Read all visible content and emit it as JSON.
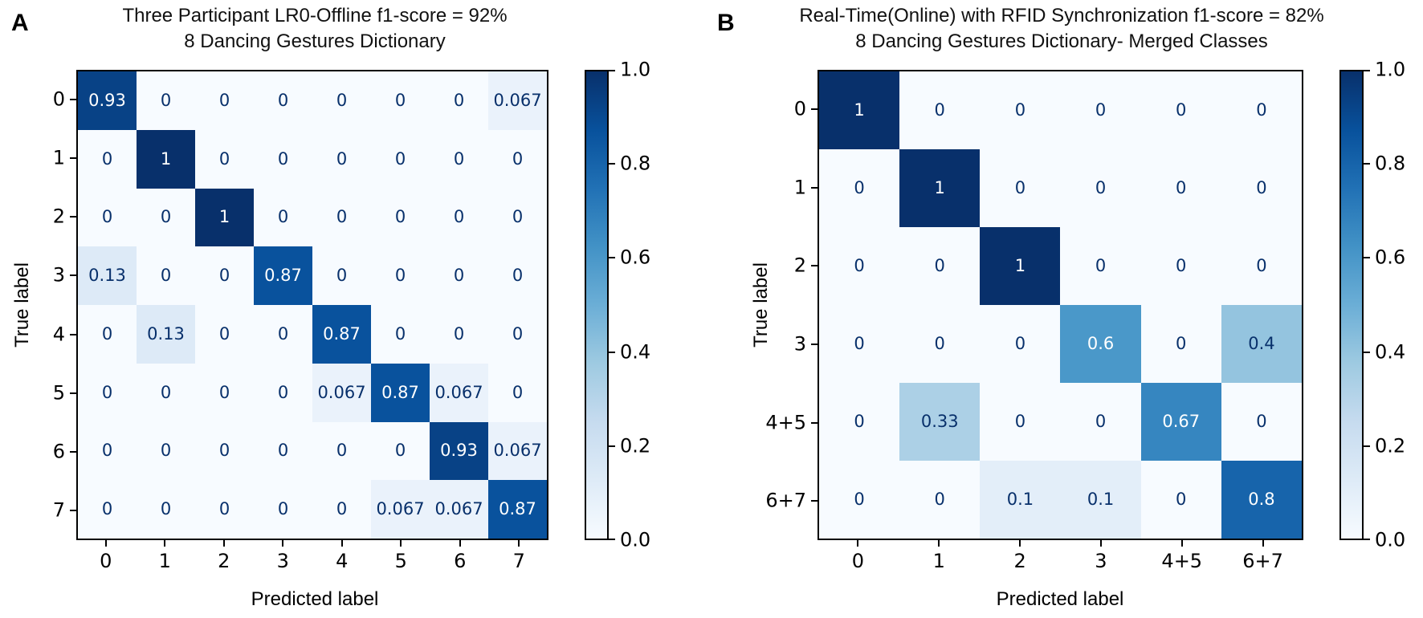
{
  "chart_data": [
    {
      "type": "heatmap",
      "panel_label": "A",
      "title": "Three Participant LR0-Offline f1-score = 92%",
      "subtitle": "8 Dancing Gestures Dictionary",
      "xlabel": "Predicted label",
      "ylabel": "True label",
      "x_categories": [
        "0",
        "1",
        "2",
        "3",
        "4",
        "5",
        "6",
        "7"
      ],
      "y_categories": [
        "0",
        "1",
        "2",
        "3",
        "4",
        "5",
        "6",
        "7"
      ],
      "matrix": [
        [
          0.93,
          0,
          0,
          0,
          0,
          0,
          0,
          0.067
        ],
        [
          0,
          1,
          0,
          0,
          0,
          0,
          0,
          0
        ],
        [
          0,
          0,
          1,
          0,
          0,
          0,
          0,
          0
        ],
        [
          0.13,
          0,
          0,
          0.87,
          0,
          0,
          0,
          0
        ],
        [
          0,
          0.13,
          0,
          0,
          0.87,
          0,
          0,
          0
        ],
        [
          0,
          0,
          0,
          0,
          0.067,
          0.87,
          0.067,
          0
        ],
        [
          0,
          0,
          0,
          0,
          0,
          0,
          0.93,
          0.067
        ],
        [
          0,
          0,
          0,
          0,
          0,
          0.067,
          0.067,
          0.87
        ]
      ],
      "colorbar": {
        "min": 0.0,
        "max": 1.0,
        "tick_labels": [
          "1.0",
          "0.8",
          "0.6",
          "0.4",
          "0.2",
          "0.0"
        ],
        "colormap": "Blues"
      }
    },
    {
      "type": "heatmap",
      "panel_label": "B",
      "title": "Real-Time(Online) with RFID Synchronization f1-score = 82%",
      "subtitle": "8 Dancing Gestures Dictionary- Merged Classes",
      "xlabel": "Predicted label",
      "ylabel": "True label",
      "x_categories": [
        "0",
        "1",
        "2",
        "3",
        "4+5",
        "6+7"
      ],
      "y_categories": [
        "0",
        "1",
        "2",
        "3",
        "4+5",
        "6+7"
      ],
      "matrix": [
        [
          1,
          0,
          0,
          0,
          0,
          0
        ],
        [
          0,
          1,
          0,
          0,
          0,
          0
        ],
        [
          0,
          0,
          1,
          0,
          0,
          0
        ],
        [
          0,
          0,
          0,
          0.6,
          0,
          0.4
        ],
        [
          0,
          0.33,
          0,
          0,
          0.67,
          0
        ],
        [
          0,
          0,
          0.1,
          0.1,
          0,
          0.8
        ]
      ],
      "colorbar": {
        "min": 0.0,
        "max": 1.0,
        "tick_labels": [
          "1.0",
          "0.8",
          "0.6",
          "0.4",
          "0.2",
          "0.0"
        ],
        "colormap": "Blues"
      }
    }
  ],
  "colors": {
    "colormap_anchors": [
      "#f7fbff",
      "#deebf7",
      "#c6dbef",
      "#9ecae1",
      "#6baed6",
      "#4292c6",
      "#2171b5",
      "#08519c",
      "#08306b"
    ],
    "cell_text_dark": "#08306b",
    "cell_text_light": "#ffffff",
    "axis_text": "#000000",
    "background": "#ffffff"
  }
}
